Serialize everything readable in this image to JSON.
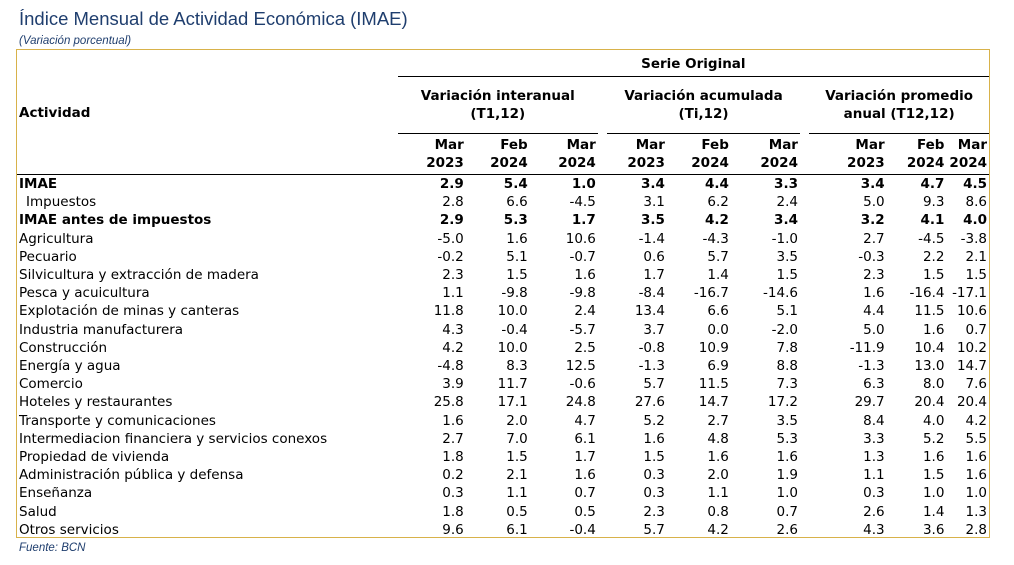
{
  "title": "Índice Mensual de Actividad Económica (IMAE)",
  "subtitle": "(Variación porcentual)",
  "source": "Fuente: BCN",
  "table": {
    "activity_header": "Actividad",
    "serie_header": "Serie Original",
    "groups": [
      {
        "line1": "Variación interanual",
        "line2": "(T1,12)"
      },
      {
        "line1": "Variación acumulada",
        "line2": "(Ti,12)"
      },
      {
        "line1": "Variación promedio",
        "line2": "anual (T12,12)"
      }
    ],
    "columns": [
      {
        "month": "Mar",
        "year": "2023"
      },
      {
        "month": "Feb",
        "year": "2024"
      },
      {
        "month": "Mar",
        "year": "2024"
      },
      {
        "month": "Mar",
        "year": "2023"
      },
      {
        "month": "Feb",
        "year": "2024"
      },
      {
        "month": "Mar",
        "year": "2024"
      },
      {
        "month": "Mar",
        "year": "2023"
      },
      {
        "month": "Feb",
        "year": "2024"
      },
      {
        "month": "Mar",
        "year": "2024"
      }
    ],
    "rows": [
      {
        "label": "IMAE",
        "bold": true,
        "indent": false,
        "values": [
          "2.9",
          "5.4",
          "1.0",
          "3.4",
          "4.4",
          "3.3",
          "3.4",
          "4.7",
          "4.5"
        ]
      },
      {
        "label": "Impuestos",
        "bold": false,
        "indent": true,
        "values": [
          "2.8",
          "6.6",
          "-4.5",
          "3.1",
          "6.2",
          "2.4",
          "5.0",
          "9.3",
          "8.6"
        ]
      },
      {
        "label": "IMAE antes de impuestos",
        "bold": true,
        "indent": false,
        "values": [
          "2.9",
          "5.3",
          "1.7",
          "3.5",
          "4.2",
          "3.4",
          "3.2",
          "4.1",
          "4.0"
        ]
      },
      {
        "label": "Agricultura",
        "bold": false,
        "indent": false,
        "values": [
          "-5.0",
          "1.6",
          "10.6",
          "-1.4",
          "-4.3",
          "-1.0",
          "2.7",
          "-4.5",
          "-3.8"
        ]
      },
      {
        "label": "Pecuario",
        "bold": false,
        "indent": false,
        "values": [
          "-0.2",
          "5.1",
          "-0.7",
          "0.6",
          "5.7",
          "3.5",
          "-0.3",
          "2.2",
          "2.1"
        ]
      },
      {
        "label": "Silvicultura y extracción de madera",
        "bold": false,
        "indent": false,
        "values": [
          "2.3",
          "1.5",
          "1.6",
          "1.7",
          "1.4",
          "1.5",
          "2.3",
          "1.5",
          "1.5"
        ]
      },
      {
        "label": "Pesca y acuicultura",
        "bold": false,
        "indent": false,
        "values": [
          "1.1",
          "-9.8",
          "-9.8",
          "-8.4",
          "-16.7",
          "-14.6",
          "1.6",
          "-16.4",
          "-17.1"
        ]
      },
      {
        "label": "Explotación de minas y canteras",
        "bold": false,
        "indent": false,
        "values": [
          "11.8",
          "10.0",
          "2.4",
          "13.4",
          "6.6",
          "5.1",
          "4.4",
          "11.5",
          "10.6"
        ]
      },
      {
        "label": "Industria manufacturera",
        "bold": false,
        "indent": false,
        "values": [
          "4.3",
          "-0.4",
          "-5.7",
          "3.7",
          "0.0",
          "-2.0",
          "5.0",
          "1.6",
          "0.7"
        ]
      },
      {
        "label": "Construcción",
        "bold": false,
        "indent": false,
        "values": [
          "4.2",
          "10.0",
          "2.5",
          "-0.8",
          "10.9",
          "7.8",
          "-11.9",
          "10.4",
          "10.2"
        ]
      },
      {
        "label": "Energía y agua",
        "bold": false,
        "indent": false,
        "values": [
          "-4.8",
          "8.3",
          "12.5",
          "-1.3",
          "6.9",
          "8.8",
          "-1.3",
          "13.0",
          "14.7"
        ]
      },
      {
        "label": "Comercio",
        "bold": false,
        "indent": false,
        "values": [
          "3.9",
          "11.7",
          "-0.6",
          "5.7",
          "11.5",
          "7.3",
          "6.3",
          "8.0",
          "7.6"
        ]
      },
      {
        "label": "Hoteles y restaurantes",
        "bold": false,
        "indent": false,
        "values": [
          "25.8",
          "17.1",
          "24.8",
          "27.6",
          "14.7",
          "17.2",
          "29.7",
          "20.4",
          "20.4"
        ]
      },
      {
        "label": "Transporte y comunicaciones",
        "bold": false,
        "indent": false,
        "values": [
          "1.6",
          "2.0",
          "4.7",
          "5.2",
          "2.7",
          "3.5",
          "8.4",
          "4.0",
          "4.2"
        ]
      },
      {
        "label": "Intermediacion financiera y servicios conexos",
        "bold": false,
        "indent": false,
        "values": [
          "2.7",
          "7.0",
          "6.1",
          "1.6",
          "4.8",
          "5.3",
          "3.3",
          "5.2",
          "5.5"
        ]
      },
      {
        "label": "Propiedad de vivienda",
        "bold": false,
        "indent": false,
        "values": [
          "1.8",
          "1.5",
          "1.7",
          "1.5",
          "1.6",
          "1.6",
          "1.3",
          "1.6",
          "1.6"
        ]
      },
      {
        "label": "Administración pública y defensa",
        "bold": false,
        "indent": false,
        "values": [
          "0.2",
          "2.1",
          "1.6",
          "0.3",
          "2.0",
          "1.9",
          "1.1",
          "1.5",
          "1.6"
        ]
      },
      {
        "label": "Enseñanza",
        "bold": false,
        "indent": false,
        "values": [
          "0.3",
          "1.1",
          "0.7",
          "0.3",
          "1.1",
          "1.0",
          "0.3",
          "1.0",
          "1.0"
        ]
      },
      {
        "label": "Salud",
        "bold": false,
        "indent": false,
        "values": [
          "1.8",
          "0.5",
          "0.5",
          "2.3",
          "0.8",
          "0.7",
          "2.6",
          "1.4",
          "1.3"
        ]
      },
      {
        "label": "Otros servicios",
        "bold": false,
        "indent": false,
        "values": [
          "9.6",
          "6.1",
          "-0.4",
          "5.7",
          "4.2",
          "2.6",
          "4.3",
          "3.6",
          "2.8"
        ]
      }
    ]
  }
}
